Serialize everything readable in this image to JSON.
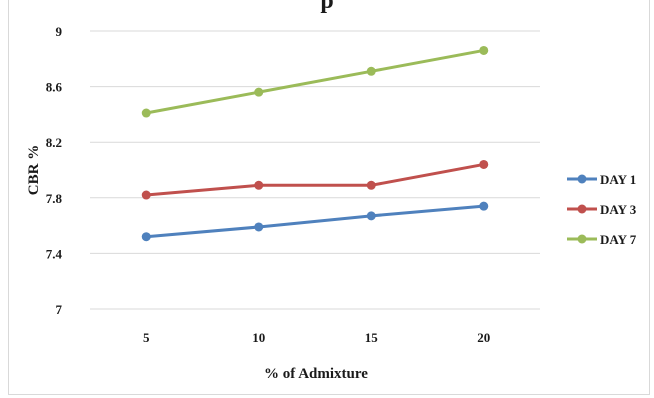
{
  "chart_data": {
    "type": "line",
    "title_fragment": "p",
    "xlabel": "% of Admixture",
    "ylabel": "CBR %",
    "categories": [
      "5",
      "10",
      "15",
      "20"
    ],
    "ylim": [
      7,
      9
    ],
    "yticks": [
      "7",
      "7.4",
      "7.8",
      "8.2",
      "8.6",
      "9"
    ],
    "ytick_values": [
      7,
      7.4,
      7.8,
      8.2,
      8.6,
      9
    ],
    "grid": true,
    "legend_position": "right",
    "series": [
      {
        "name": "DAY 1",
        "color": "#4f81bd",
        "values": [
          7.52,
          7.59,
          7.67,
          7.74
        ]
      },
      {
        "name": "DAY 3",
        "color": "#c0504d",
        "values": [
          7.82,
          7.89,
          7.89,
          8.04
        ]
      },
      {
        "name": "DAY 7",
        "color": "#9bbb59",
        "values": [
          8.41,
          8.56,
          8.71,
          8.86
        ]
      }
    ]
  }
}
